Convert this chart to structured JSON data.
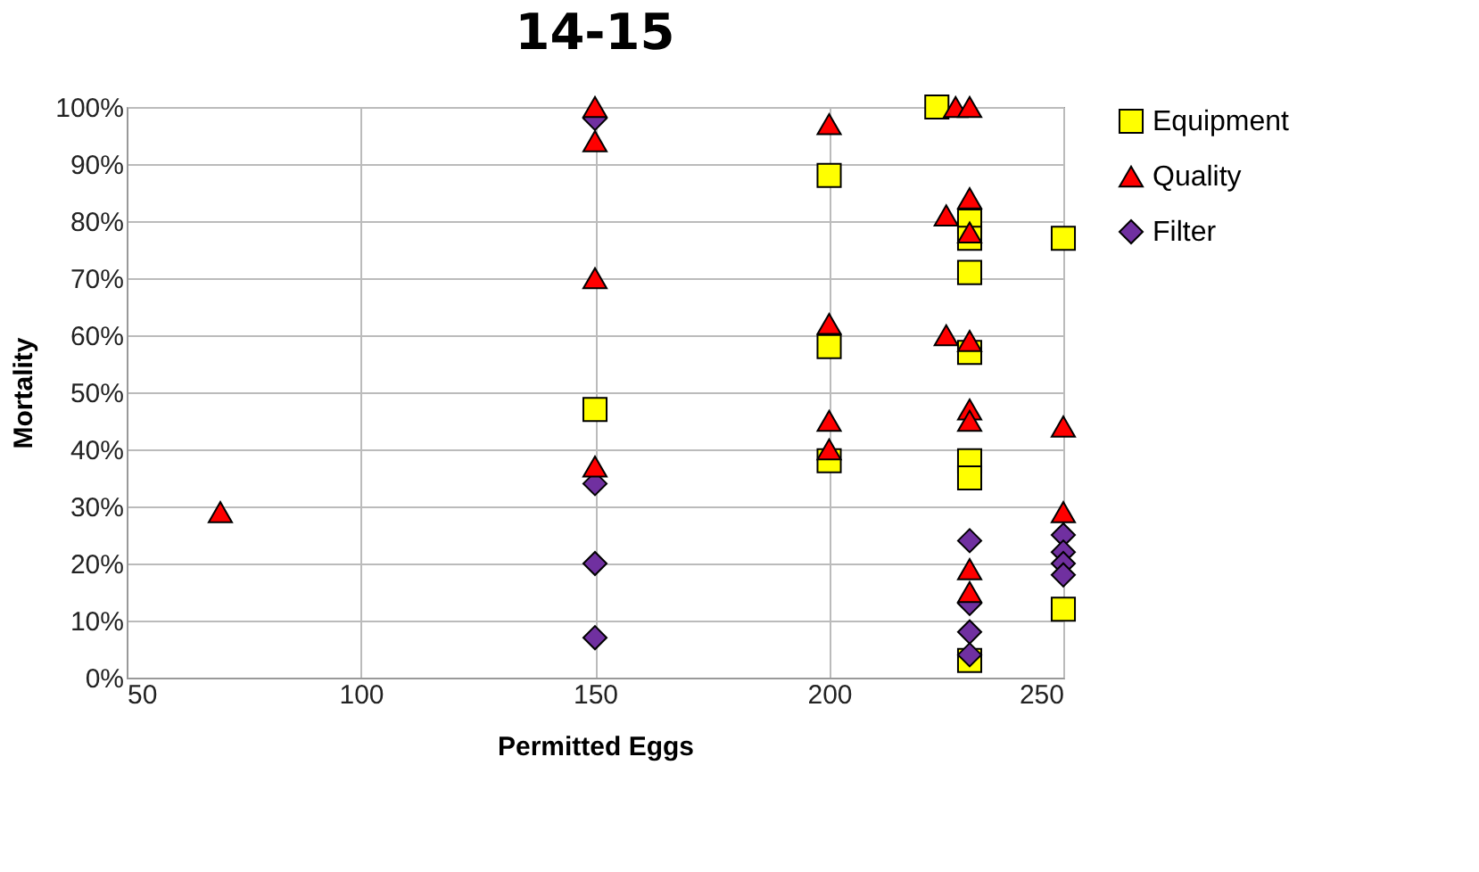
{
  "chart_data": {
    "type": "scatter",
    "title": "14-15",
    "xlabel": "Permitted Eggs",
    "ylabel": "Mortality",
    "xlim": [
      50,
      250
    ],
    "xticks": [
      50,
      100,
      150,
      200,
      250
    ],
    "ylim": [
      0,
      100
    ],
    "yticks": [
      {
        "value": 0,
        "label": "0%"
      },
      {
        "value": 10,
        "label": "10%"
      },
      {
        "value": 20,
        "label": "20%"
      },
      {
        "value": 30,
        "label": "30%"
      },
      {
        "value": 40,
        "label": "40%"
      },
      {
        "value": 50,
        "label": "50%"
      },
      {
        "value": 60,
        "label": "60%"
      },
      {
        "value": 70,
        "label": "70%"
      },
      {
        "value": 80,
        "label": "80%"
      },
      {
        "value": 90,
        "label": "90%"
      },
      {
        "value": 100,
        "label": "100%"
      }
    ],
    "grid": true,
    "legend": "right",
    "series": [
      {
        "name": "Equipment",
        "color": "#ffff00",
        "marker": "square",
        "x": [
          150,
          200,
          200,
          200,
          223,
          230,
          230,
          230,
          230,
          230,
          230,
          230,
          250,
          250
        ],
        "values": [
          47,
          88,
          58,
          38,
          100,
          80,
          77,
          71,
          57,
          38,
          35,
          3,
          77,
          12
        ]
      },
      {
        "name": "Quality",
        "color": "#ff0000",
        "marker": "triangle",
        "x": [
          70,
          150,
          150,
          150,
          150,
          200,
          200,
          200,
          200,
          227,
          230,
          225,
          230,
          230,
          225,
          230,
          230,
          230,
          230,
          230,
          250,
          250
        ],
        "values": [
          29,
          100,
          94,
          70,
          37,
          97,
          62,
          45,
          40,
          100,
          100,
          81,
          84,
          78,
          60,
          59,
          47,
          45,
          19,
          15,
          44,
          29
        ]
      },
      {
        "name": "Filter",
        "color": "#7030a0",
        "marker": "diamond",
        "x": [
          150,
          150,
          150,
          150,
          230,
          230,
          230,
          230,
          250,
          250,
          250,
          250
        ],
        "values": [
          98,
          34,
          20,
          7,
          24,
          13,
          8,
          4,
          25,
          22,
          20,
          18
        ]
      }
    ]
  }
}
